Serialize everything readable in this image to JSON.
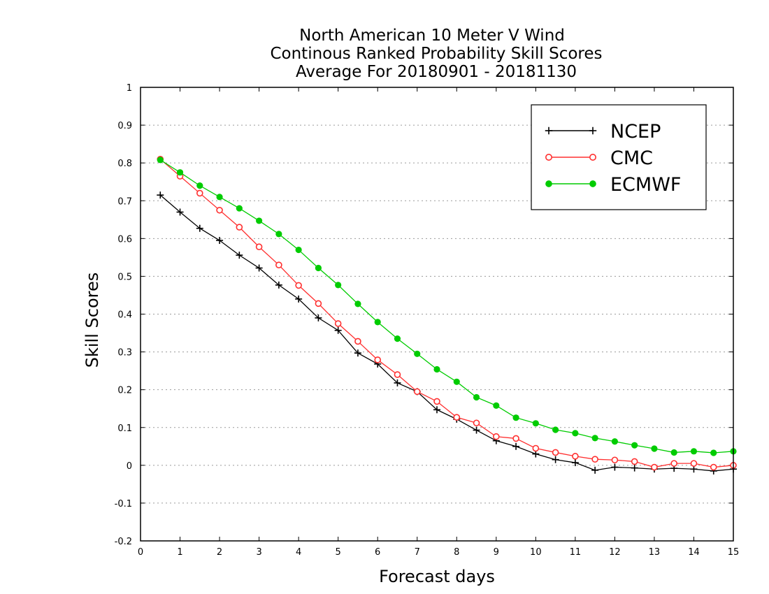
{
  "chart_data": {
    "type": "line",
    "title": [
      "North American 10 Meter V Wind",
      "Continous Ranked Probability Skill Scores",
      "Average For 20180901 - 20181130"
    ],
    "xlabel": "Forecast days",
    "ylabel": "Skill Scores",
    "xlim": [
      0,
      15
    ],
    "ylim": [
      -0.2,
      1
    ],
    "xticks": [
      0,
      1,
      2,
      3,
      4,
      5,
      6,
      7,
      8,
      9,
      10,
      11,
      12,
      13,
      14,
      15
    ],
    "xtick_labels": [
      "0",
      "1",
      "2",
      "3",
      "4",
      "5",
      "6",
      "7",
      "8",
      "9",
      "10",
      "11",
      "12",
      "13",
      "14",
      "15"
    ],
    "yticks": [
      -0.2,
      -0.1,
      0,
      0.1,
      0.2,
      0.3,
      0.4,
      0.5,
      0.6,
      0.7,
      0.8,
      0.9,
      1
    ],
    "ytick_labels": [
      "-0.2",
      "-0.1",
      "0",
      "0.1",
      "0.2",
      "0.3",
      "0.4",
      "0.5",
      "0.6",
      "0.7",
      "0.8",
      "0.9",
      "1"
    ],
    "grid": true,
    "legend_position": "top-right",
    "x": [
      0.5,
      1,
      1.5,
      2,
      2.5,
      3,
      3.5,
      4,
      4.5,
      5,
      5.5,
      6,
      6.5,
      7,
      7.5,
      8,
      8.5,
      9,
      9.5,
      10,
      10.5,
      11,
      11.5,
      12,
      12.5,
      13,
      13.5,
      14,
      14.5,
      15
    ],
    "series": [
      {
        "name": "NCEP",
        "color": "#000000",
        "marker": "plus",
        "values": [
          0.715,
          0.67,
          0.627,
          0.595,
          0.556,
          0.522,
          0.477,
          0.44,
          0.39,
          0.357,
          0.297,
          0.268,
          0.218,
          0.195,
          0.147,
          0.122,
          0.093,
          0.065,
          0.05,
          0.03,
          0.015,
          0.007,
          -0.013,
          -0.005,
          -0.007,
          -0.01,
          -0.008,
          -0.01,
          -0.015,
          -0.01
        ]
      },
      {
        "name": "CMC",
        "color": "#ff3030",
        "marker": "open-circle",
        "values": [
          0.81,
          0.765,
          0.72,
          0.675,
          0.63,
          0.578,
          0.53,
          0.476,
          0.428,
          0.375,
          0.328,
          0.279,
          0.24,
          0.195,
          0.169,
          0.127,
          0.112,
          0.076,
          0.071,
          0.045,
          0.034,
          0.024,
          0.016,
          0.014,
          0.01,
          -0.005,
          0.005,
          0.005,
          -0.005,
          0.0
        ]
      },
      {
        "name": "ECMWF",
        "color": "#00cc00",
        "marker": "filled-circle",
        "values": [
          0.808,
          0.775,
          0.74,
          0.71,
          0.68,
          0.647,
          0.612,
          0.57,
          0.522,
          0.477,
          0.427,
          0.379,
          0.335,
          0.295,
          0.254,
          0.221,
          0.18,
          0.158,
          0.126,
          0.111,
          0.094,
          0.085,
          0.072,
          0.063,
          0.053,
          0.044,
          0.034,
          0.037,
          0.033,
          0.037
        ]
      }
    ]
  }
}
